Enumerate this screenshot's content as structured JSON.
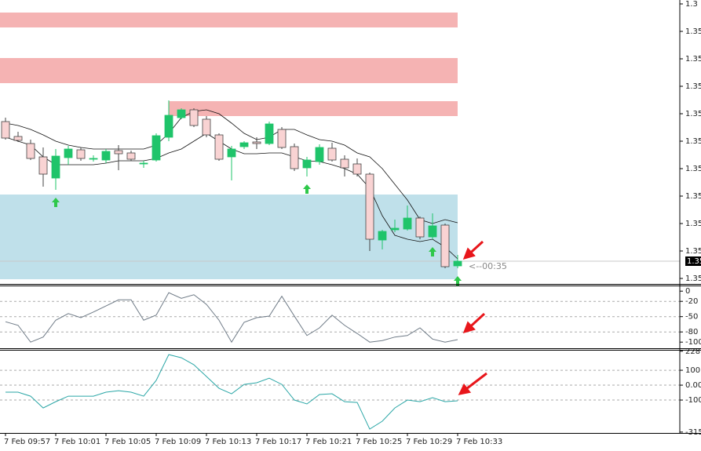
{
  "chart_data": [
    {
      "type": "candlestick",
      "categories": [
        "7 Feb 09:57",
        null,
        null,
        null,
        "7 Feb 10:01",
        null,
        null,
        null,
        "7 Feb 10:05",
        null,
        null,
        null,
        "7 Feb 10:09",
        null,
        null,
        null,
        "7 Feb 10:13",
        null,
        null,
        null,
        "7 Feb 10:17",
        null,
        null,
        null,
        "7 Feb 10:21",
        null,
        null,
        null,
        "7 Feb 10:25",
        null,
        null,
        null,
        "7 Feb 10:29",
        null,
        null,
        null,
        "7 Feb 10:33"
      ],
      "open": [
        1.35345,
        1.35326,
        1.35317,
        1.353,
        1.35273,
        1.35299,
        1.35309,
        1.35297,
        1.35296,
        1.35308,
        1.35305,
        1.35292,
        1.35296,
        1.35325,
        1.3535,
        1.3536,
        1.35348,
        1.35328,
        1.353,
        1.35313,
        1.35319,
        1.35317,
        1.35335,
        1.35313,
        1.35286,
        1.35294,
        1.35311,
        1.35297,
        1.35291,
        1.35278,
        1.35194,
        1.35207,
        1.35208,
        1.35222,
        1.35198,
        1.35213,
        1.35161
      ],
      "high": [
        1.3535,
        1.35332,
        1.35322,
        1.35312,
        1.3531,
        1.35314,
        1.35312,
        1.35302,
        1.3531,
        1.35315,
        1.35308,
        1.35295,
        1.3533,
        1.35372,
        1.35362,
        1.35362,
        1.35352,
        1.3533,
        1.35314,
        1.3532,
        1.35325,
        1.35345,
        1.35338,
        1.35317,
        1.353,
        1.35316,
        1.35318,
        1.35302,
        1.35298,
        1.3528,
        1.35207,
        1.3522,
        1.35238,
        1.35224,
        1.35228,
        1.35215,
        1.35175
      ],
      "low": [
        1.35322,
        1.35319,
        1.35296,
        1.35262,
        1.35258,
        1.3529,
        1.35295,
        1.35294,
        1.35292,
        1.35283,
        1.35295,
        1.35286,
        1.35294,
        1.3532,
        1.35348,
        1.35338,
        1.35325,
        1.35295,
        1.3527,
        1.3531,
        1.3531,
        1.35315,
        1.3531,
        1.35282,
        1.35275,
        1.3529,
        1.35294,
        1.35275,
        1.35275,
        1.3518,
        1.35182,
        1.35204,
        1.35206,
        1.35195,
        1.35195,
        1.35158,
        1.35158
      ],
      "close": [
        1.35324,
        1.35321,
        1.35298,
        1.35278,
        1.35301,
        1.3531,
        1.35298,
        1.35298,
        1.35307,
        1.35304,
        1.35297,
        1.35292,
        1.35327,
        1.35353,
        1.3536,
        1.3534,
        1.35328,
        1.35297,
        1.3531,
        1.35318,
        1.35317,
        1.35342,
        1.35312,
        1.35285,
        1.35296,
        1.35312,
        1.35296,
        1.35286,
        1.35278,
        1.35195,
        1.35205,
        1.35209,
        1.35222,
        1.35198,
        1.35212,
        1.3516,
        1.35167
      ],
      "envelope_upper": [
        1.35343,
        1.3534,
        1.35335,
        1.35328,
        1.3532,
        1.35315,
        1.35312,
        1.3531,
        1.3531,
        1.3531,
        1.3531,
        1.3531,
        1.35315,
        1.3533,
        1.3535,
        1.35358,
        1.3536,
        1.35355,
        1.35343,
        1.3533,
        1.35322,
        1.35325,
        1.35335,
        1.35335,
        1.35328,
        1.35322,
        1.3532,
        1.35315,
        1.35305,
        1.353,
        1.35285,
        1.35265,
        1.35245,
        1.3522,
        1.35215,
        1.3522,
        1.35216
      ],
      "envelope_lower": [
        1.35325,
        1.3532,
        1.35315,
        1.353,
        1.3529,
        1.3529,
        1.3529,
        1.3529,
        1.35292,
        1.35295,
        1.35295,
        1.35295,
        1.35298,
        1.35305,
        1.3531,
        1.3532,
        1.3533,
        1.3532,
        1.3531,
        1.35304,
        1.35304,
        1.35305,
        1.35305,
        1.353,
        1.35295,
        1.35294,
        1.3529,
        1.35285,
        1.35278,
        1.3526,
        1.35225,
        1.352,
        1.35195,
        1.35192,
        1.35195,
        1.35185,
        1.3517
      ],
      "zones": [
        {
          "top": 1.35484,
          "bottom": 1.35465,
          "from": 0,
          "color": "#f5b3b3"
        },
        {
          "top": 1.35426,
          "bottom": 1.35394,
          "from": 0,
          "color": "#f5b3b3"
        },
        {
          "top": 1.35371,
          "bottom": 1.35352,
          "from": 13,
          "color": "#f5b3b3"
        },
        {
          "top": 1.35252,
          "bottom": 1.35144,
          "from": 0,
          "color": "#bfe0ea"
        }
      ],
      "buy_signals": [
        4,
        24,
        34,
        36
      ],
      "bull_color": "#1fc46a",
      "bear_color": "#f9d3d3",
      "envelope_color": "#111111",
      "signal_color": "#2ec84a",
      "ylim": [
        1.35138,
        1.355
      ],
      "yticks": [
        {
          "value": 1.35495,
          "label": "1.3"
        },
        {
          "value": 1.3546,
          "label": "1.35"
        },
        {
          "value": 1.35425,
          "label": "1.35"
        },
        {
          "value": 1.3539,
          "label": "1.35"
        },
        {
          "value": 1.35355,
          "label": "1.35"
        },
        {
          "value": 1.3532,
          "label": "1.35"
        },
        {
          "value": 1.35285,
          "label": "1.35"
        },
        {
          "value": 1.3525,
          "label": "1.35"
        },
        {
          "value": 1.35215,
          "label": "1.35"
        },
        {
          "value": 1.3518,
          "label": "1.35"
        },
        {
          "value": 1.35145,
          "label": "1.35"
        }
      ],
      "current_price_label": "1.35",
      "countdown": "<--00:35"
    },
    {
      "type": "line",
      "color": "#6e7a86",
      "values": [
        -60,
        -67,
        -100,
        -90,
        -57,
        -44,
        -52,
        -41,
        -29,
        -17,
        -17,
        -57,
        -47,
        -3,
        -14,
        -7,
        -26,
        -57,
        -100,
        -61,
        -52,
        -49,
        -10,
        -49,
        -87,
        -72,
        -47,
        -67,
        -83,
        -100,
        -97,
        -90,
        -87,
        -72,
        -94,
        -100,
        -95
      ],
      "ylim": [
        -112,
        8
      ],
      "yticks": [
        0,
        -20,
        -50,
        -80,
        -100
      ],
      "grid_ticks": [
        -20,
        -50,
        -80
      ]
    },
    {
      "type": "line",
      "color": "#2aa6a6",
      "values": [
        -47,
        -47,
        -74,
        -153,
        -111,
        -74,
        -74,
        -74,
        -47,
        -37,
        -47,
        -74,
        32,
        205,
        184,
        137,
        58,
        -21,
        -58,
        5,
        16,
        47,
        5,
        -100,
        -126,
        -63,
        -58,
        -111,
        -116,
        -295,
        -242,
        -153,
        -100,
        -111,
        -84,
        -111,
        -105
      ],
      "ylim": [
        -321,
        232
      ],
      "yticks": [
        {
          "value": 228,
          "label": "228."
        },
        100,
        {
          "value": 0,
          "label": "0.00"
        },
        -100,
        -315
      ],
      "grid_ticks": [
        100,
        0,
        -100
      ]
    }
  ]
}
